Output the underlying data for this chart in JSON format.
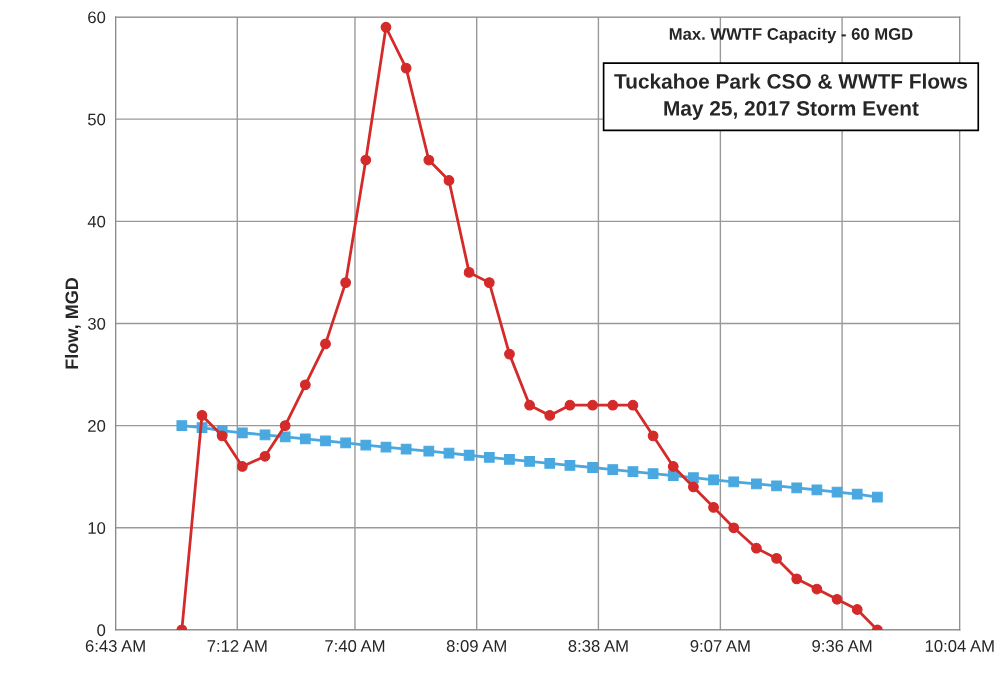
{
  "chart_data": {
    "type": "line",
    "title": "Tuckahoe Park CSO & WWTF Flows\nMay 25, 2017 Storm Event",
    "ylabel": "Flow, MGD",
    "annotations": [
      "Max. WWTF Capacity - 60 MGD"
    ],
    "x": [
      6.98,
      7.06,
      7.14,
      7.22,
      7.31,
      7.39,
      7.47,
      7.55,
      7.63,
      7.71,
      7.79,
      7.87,
      7.96,
      8.04,
      8.12,
      8.2,
      8.28,
      8.36,
      8.44,
      8.52,
      8.61,
      8.69,
      8.77,
      8.85,
      8.93,
      9.01,
      9.09,
      9.17,
      9.26,
      9.34,
      9.42,
      9.5,
      9.58,
      9.66,
      9.74
    ],
    "series": [
      {
        "color": "#d42a2a",
        "marker": "circle",
        "values": [
          0,
          21,
          19,
          16,
          17,
          20,
          24,
          28,
          34,
          46,
          59,
          55,
          46,
          44,
          35,
          34,
          27,
          22,
          21,
          22,
          22,
          22,
          22,
          19,
          16,
          14,
          12,
          10,
          8,
          7,
          5,
          4,
          3,
          2,
          0
        ]
      },
      {
        "color": "#4aa8e0",
        "marker": "square",
        "values": [
          20,
          19.8,
          19.5,
          19.3,
          19.1,
          18.9,
          18.7,
          18.5,
          18.3,
          18.1,
          17.9,
          17.7,
          17.5,
          17.3,
          17.1,
          16.9,
          16.7,
          16.5,
          16.3,
          16.1,
          15.9,
          15.7,
          15.5,
          15.3,
          15.1,
          14.9,
          14.7,
          14.5,
          14.3,
          14.1,
          13.9,
          13.7,
          13.5,
          13.3,
          13
        ]
      }
    ],
    "xlim": [
      6.717,
      10.067
    ],
    "xticks": [
      {
        "value": 6.717,
        "label": "6:43 AM"
      },
      {
        "value": 7.2,
        "label": "7:12 AM"
      },
      {
        "value": 7.667,
        "label": "7:40 AM"
      },
      {
        "value": 8.15,
        "label": "8:09 AM"
      },
      {
        "value": 8.633,
        "label": "8:38 AM"
      },
      {
        "value": 9.117,
        "label": "9:07 AM"
      },
      {
        "value": 9.6,
        "label": "9:36 AM"
      },
      {
        "value": 10.067,
        "label": "10:04 AM"
      }
    ],
    "ylim": [
      0,
      60
    ],
    "yticks": [
      0,
      10,
      20,
      30,
      40,
      50,
      60
    ],
    "grid": true,
    "legend": false
  }
}
